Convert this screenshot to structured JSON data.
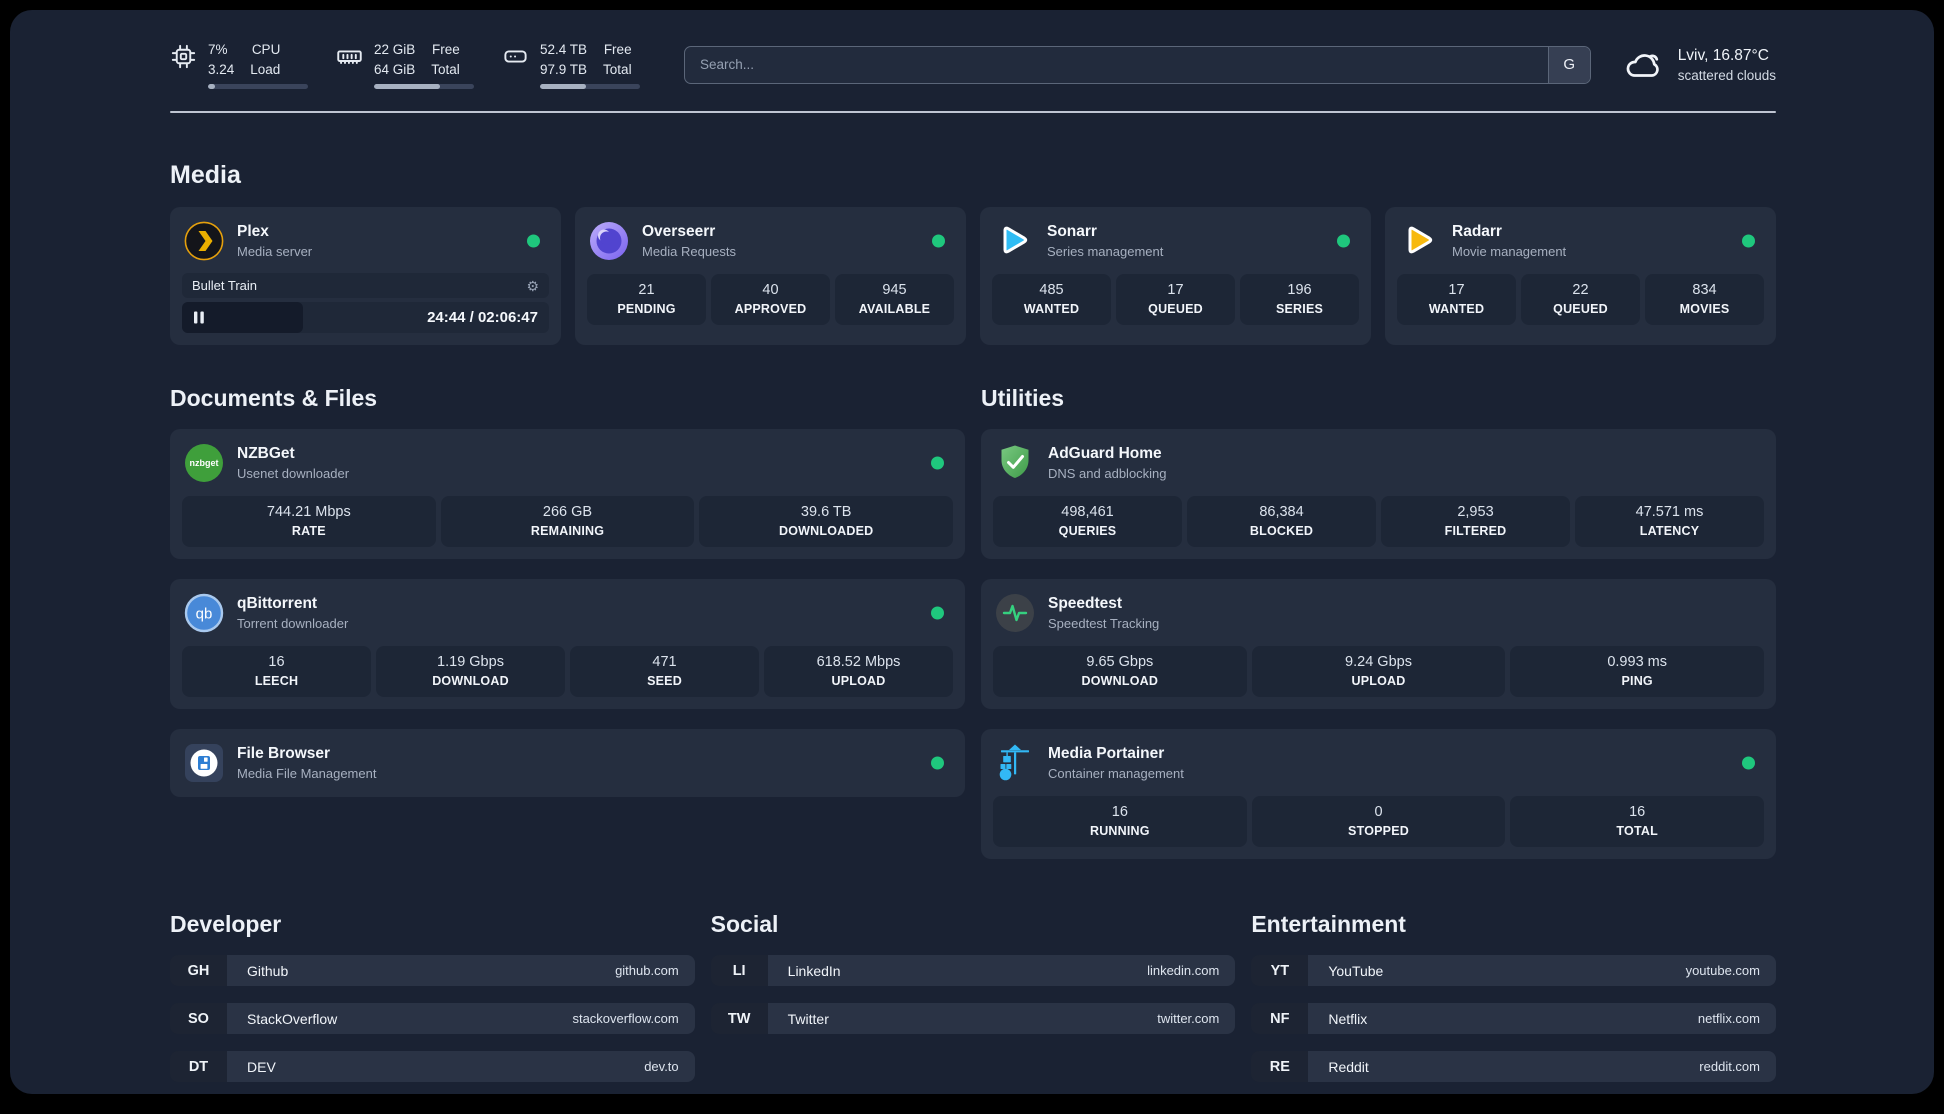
{
  "theme": {
    "background": "#1a2233",
    "card": "#252e3f",
    "stat_box": "#1d2636",
    "status_green": "#1fc77d",
    "portainer_blue": "#32b8f5",
    "plex_orange": "#e5a00d",
    "radarr_yellow": "#f7b90f",
    "sonarr_blue": "#30bdf5"
  },
  "topbar": {
    "cpu": {
      "icon": "cpu-icon",
      "value_top": "7%",
      "value_bottom": "3.24",
      "label_top": "CPU",
      "label_bottom": "Load",
      "progress_pct": 7
    },
    "ram": {
      "icon": "ram-icon",
      "value_top": "22 GiB",
      "value_bottom": "64 GiB",
      "label_top": "Free",
      "label_bottom": "Total",
      "progress_pct": 66
    },
    "disk": {
      "icon": "disk-icon",
      "value_top": "52.4 TB",
      "value_bottom": "97.9 TB",
      "label_top": "Free",
      "label_bottom": "Total",
      "progress_pct": 46
    },
    "search": {
      "placeholder": "Search...",
      "button_label": "G"
    },
    "weather": {
      "icon": "cloud-icon",
      "location_temp": "Lviv, 16.87°C",
      "condition": "scattered clouds"
    }
  },
  "media": {
    "heading": "Media",
    "plex": {
      "icon": "plex-icon",
      "title": "Plex",
      "subtitle": "Media server",
      "status": "online",
      "now_playing": "Bullet Train",
      "playback_time": "24:44 / 02:06:47"
    },
    "overseerr": {
      "icon": "overseerr-icon",
      "title": "Overseerr",
      "subtitle": "Media Requests",
      "status": "online",
      "stats": [
        {
          "value": "21",
          "label": "PENDING"
        },
        {
          "value": "40",
          "label": "APPROVED"
        },
        {
          "value": "945",
          "label": "AVAILABLE"
        }
      ]
    },
    "sonarr": {
      "icon": "sonarr-icon",
      "title": "Sonarr",
      "subtitle": "Series management",
      "status": "online",
      "stats": [
        {
          "value": "485",
          "label": "WANTED"
        },
        {
          "value": "17",
          "label": "QUEUED"
        },
        {
          "value": "196",
          "label": "SERIES"
        }
      ]
    },
    "radarr": {
      "icon": "radarr-icon",
      "title": "Radarr",
      "subtitle": "Movie management",
      "status": "online",
      "stats": [
        {
          "value": "17",
          "label": "WANTED"
        },
        {
          "value": "22",
          "label": "QUEUED"
        },
        {
          "value": "834",
          "label": "MOVIES"
        }
      ]
    }
  },
  "documents": {
    "heading": "Documents & Files",
    "nzbget": {
      "icon": "nzbget-icon",
      "title": "NZBGet",
      "subtitle": "Usenet downloader",
      "status": "online",
      "stats": [
        {
          "value": "744.21 Mbps",
          "label": "RATE"
        },
        {
          "value": "266 GB",
          "label": "REMAINING"
        },
        {
          "value": "39.6 TB",
          "label": "DOWNLOADED"
        }
      ]
    },
    "qbittorrent": {
      "icon": "qbittorrent-icon",
      "title": "qBittorrent",
      "subtitle": "Torrent downloader",
      "status": "online",
      "stats": [
        {
          "value": "16",
          "label": "LEECH"
        },
        {
          "value": "1.19 Gbps",
          "label": "DOWNLOAD"
        },
        {
          "value": "471",
          "label": "SEED"
        },
        {
          "value": "618.52 Mbps",
          "label": "UPLOAD"
        }
      ]
    },
    "filebrowser": {
      "icon": "filebrowser-icon",
      "title": "File Browser",
      "subtitle": "Media File Management",
      "status": "online"
    }
  },
  "utilities": {
    "heading": "Utilities",
    "adguard": {
      "icon": "adguard-icon",
      "title": "AdGuard Home",
      "subtitle": "DNS and adblocking",
      "stats": [
        {
          "value": "498,461",
          "label": "QUERIES"
        },
        {
          "value": "86,384",
          "label": "BLOCKED"
        },
        {
          "value": "2,953",
          "label": "FILTERED"
        },
        {
          "value": "47.571 ms",
          "label": "LATENCY"
        }
      ]
    },
    "speedtest": {
      "icon": "speedtest-icon",
      "title": "Speedtest",
      "subtitle": "Speedtest Tracking",
      "stats": [
        {
          "value": "9.65 Gbps",
          "label": "DOWNLOAD"
        },
        {
          "value": "9.24 Gbps",
          "label": "UPLOAD"
        },
        {
          "value": "0.993 ms",
          "label": "PING"
        }
      ]
    },
    "portainer": {
      "icon": "portainer-icon",
      "title": "Media Portainer",
      "subtitle": "Container management",
      "status": "online",
      "stats": [
        {
          "value": "16",
          "label": "RUNNING"
        },
        {
          "value": "0",
          "label": "STOPPED"
        },
        {
          "value": "16",
          "label": "TOTAL"
        }
      ]
    }
  },
  "links": {
    "developer": {
      "heading": "Developer",
      "items": [
        {
          "tag": "GH",
          "name": "Github",
          "url": "github.com"
        },
        {
          "tag": "SO",
          "name": "StackOverflow",
          "url": "stackoverflow.com"
        },
        {
          "tag": "DT",
          "name": "DEV",
          "url": "dev.to"
        }
      ]
    },
    "social": {
      "heading": "Social",
      "items": [
        {
          "tag": "LI",
          "name": "LinkedIn",
          "url": "linkedin.com"
        },
        {
          "tag": "TW",
          "name": "Twitter",
          "url": "twitter.com"
        }
      ]
    },
    "entertainment": {
      "heading": "Entertainment",
      "items": [
        {
          "tag": "YT",
          "name": "YouTube",
          "url": "youtube.com"
        },
        {
          "tag": "NF",
          "name": "Netflix",
          "url": "netflix.com"
        },
        {
          "tag": "RE",
          "name": "Reddit",
          "url": "reddit.com"
        }
      ]
    }
  }
}
